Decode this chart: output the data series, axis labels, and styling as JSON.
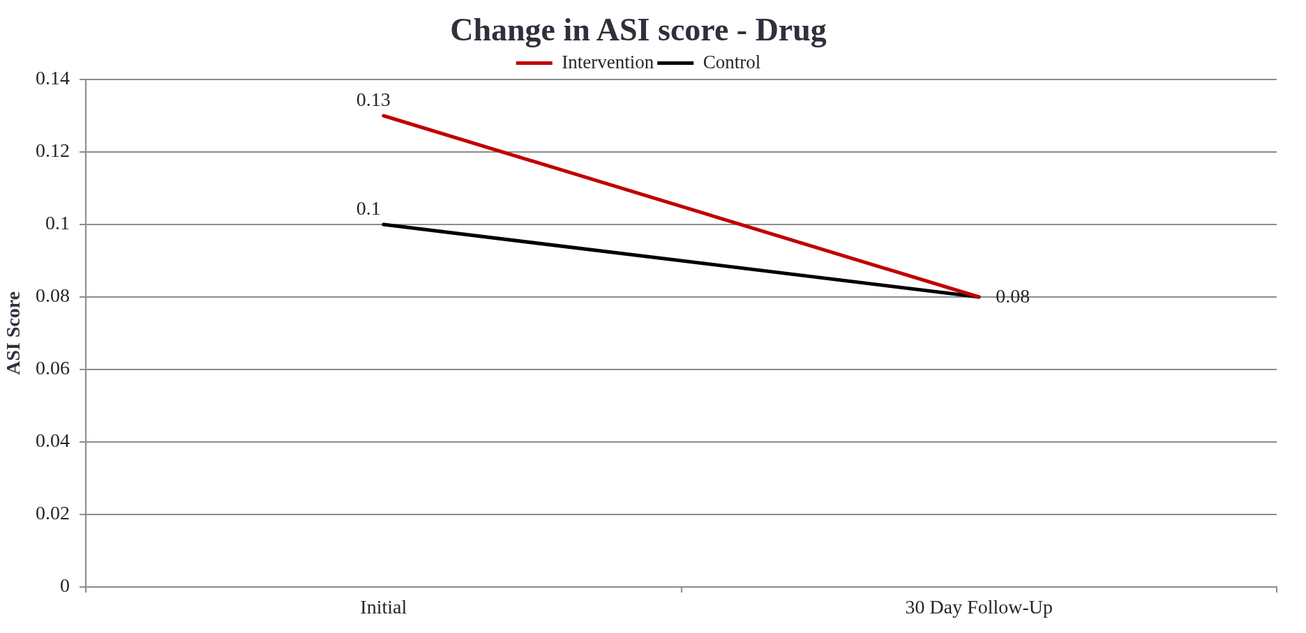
{
  "chart_data": {
    "type": "line",
    "title": "Change in ASI score - Drug",
    "ylabel": "ASI Score",
    "categories": [
      "Initial",
      "30 Day Follow-Up"
    ],
    "series": [
      {
        "name": "Intervention",
        "color": "#c00000",
        "values": [
          0.13,
          0.08
        ],
        "value_labels": [
          "0.13",
          "0.08"
        ]
      },
      {
        "name": "Control",
        "color": "#000000",
        "values": [
          0.1,
          0.08
        ],
        "value_labels": [
          "0.1",
          null
        ]
      }
    ],
    "ylim": [
      0,
      0.14
    ],
    "yticks": [
      0,
      0.02,
      0.04,
      0.06,
      0.08,
      0.1,
      0.12,
      0.14
    ],
    "grid": "y",
    "legend": "top",
    "marker": "none",
    "line_style": "solid"
  }
}
